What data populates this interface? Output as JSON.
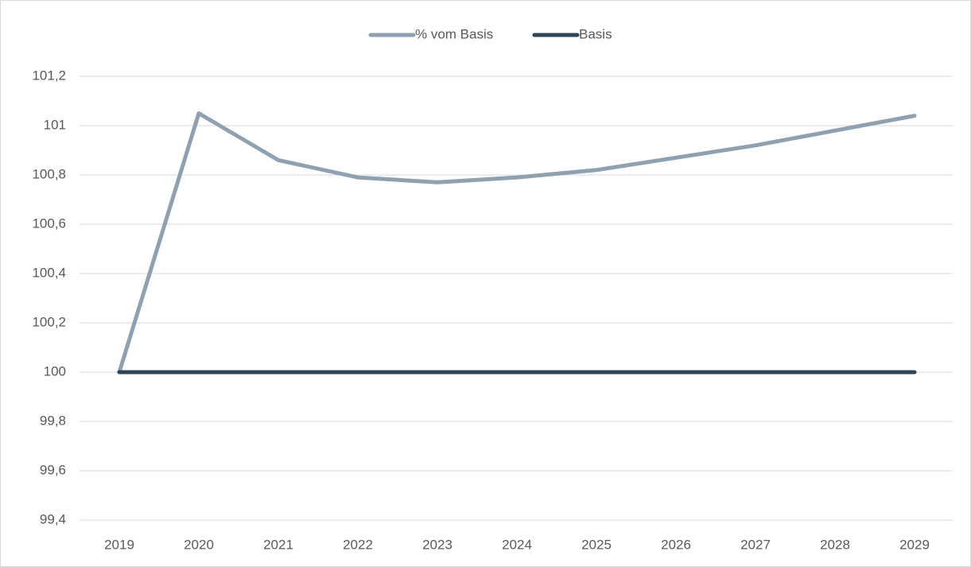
{
  "chart_data": {
    "type": "line",
    "categories": [
      "2019",
      "2020",
      "2021",
      "2022",
      "2023",
      "2024",
      "2025",
      "2026",
      "2027",
      "2028",
      "2029"
    ],
    "series": [
      {
        "name": "% vom Basis",
        "color": "#8fa0b0",
        "values": [
          100,
          101.05,
          100.86,
          100.79,
          100.77,
          100.79,
          100.82,
          100.87,
          100.92,
          100.98,
          101.04
        ]
      },
      {
        "name": "Basis",
        "color": "#2e4458",
        "values": [
          100,
          100,
          100,
          100,
          100,
          100,
          100,
          100,
          100,
          100,
          100
        ]
      }
    ],
    "ylim": [
      99.4,
      101.2
    ],
    "yticks": [
      {
        "value": 99.4,
        "label": "99,4"
      },
      {
        "value": 99.6,
        "label": "99,6"
      },
      {
        "value": 99.8,
        "label": "99,8"
      },
      100,
      {
        "value": 100.2,
        "label": "100,2"
      },
      {
        "value": 100.4,
        "label": "100,4"
      },
      {
        "value": 100.6,
        "label": "100,6"
      },
      {
        "value": 100.8,
        "label": "100,8"
      },
      101,
      {
        "value": 101.2,
        "label": "101,2"
      }
    ],
    "grid": true,
    "legend": "top"
  }
}
